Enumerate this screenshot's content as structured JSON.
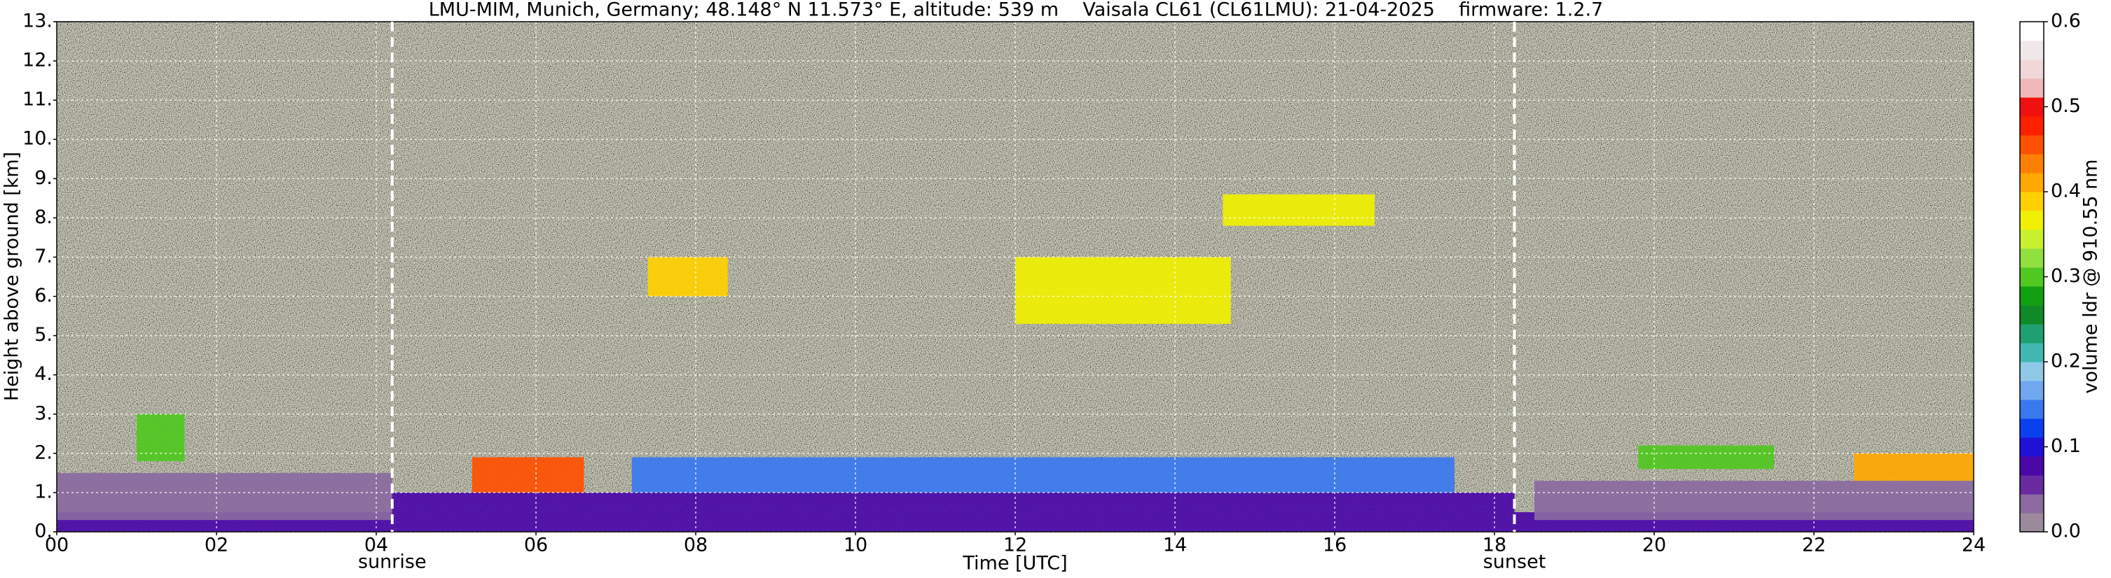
{
  "chart_data": {
    "type": "heatmap",
    "title": "LMU-MIM, Munich, Germany; 48.148° N 11.573° E, altitude: 539 m    Vaisala CL61 (CL61LMU): 21-04-2025    firmware: 1.2.7",
    "x_label": "Time [UTC]",
    "y_label": "Height above ground [km]",
    "xlim": [
      0,
      24
    ],
    "xticks": [
      {
        "value": 0,
        "label": "00"
      },
      {
        "value": 2,
        "label": "02"
      },
      {
        "value": 4,
        "label": "04"
      },
      {
        "value": 6,
        "label": "06"
      },
      {
        "value": 8,
        "label": "08"
      },
      10,
      12,
      14,
      16,
      18,
      20,
      22,
      24
    ],
    "ylim": [
      0,
      13
    ],
    "yticks": [
      {
        "value": 0,
        "label": "0."
      },
      {
        "value": 1,
        "label": "1."
      },
      {
        "value": 2,
        "label": "2."
      },
      {
        "value": 3,
        "label": "3."
      },
      {
        "value": 4,
        "label": "4."
      },
      {
        "value": 5,
        "label": "5."
      },
      {
        "value": 6,
        "label": "6."
      },
      {
        "value": 7,
        "label": "7."
      },
      {
        "value": 8,
        "label": "8."
      },
      {
        "value": 9,
        "label": "9."
      },
      {
        "value": 10,
        "label": "10."
      },
      {
        "value": 11,
        "label": "11."
      },
      {
        "value": 12,
        "label": "12."
      },
      {
        "value": 13,
        "label": "13."
      }
    ],
    "grid": true,
    "annotations": [
      {
        "text": "sunrise",
        "x": 4.2
      },
      {
        "text": "sunset",
        "x": 18.25
      }
    ],
    "colorbar": {
      "label": "volume ldr @ 910.55 nm",
      "clim": [
        0,
        0.6
      ],
      "ticks": [
        {
          "value": 0,
          "label": "0.0"
        },
        0.1,
        0.2,
        0.3,
        0.4,
        0.5,
        0.6
      ],
      "colors": [
        "#9a8a9c",
        "#8a6aa0",
        "#6a2aa0",
        "#4a08a8",
        "#2010d8",
        "#0a40f0",
        "#3a78f0",
        "#70a8f0",
        "#90c8e8",
        "#40b8b0",
        "#20a070",
        "#108a28",
        "#10a010",
        "#50c820",
        "#90e040",
        "#c8f030",
        "#f0f000",
        "#ffd000",
        "#ffa800",
        "#ff8000",
        "#ff5000",
        "#ff2000",
        "#f01010",
        "#f0b8b8",
        "#f0d8d8",
        "#f0e8e8",
        "#ffffff"
      ]
    },
    "layers": [
      {
        "x": [
          0,
          24
        ],
        "y": [
          0,
          0.5
        ],
        "value": 0.08
      },
      {
        "x": [
          0,
          4.2
        ],
        "y": [
          0.3,
          1.5
        ],
        "value": 0.04
      },
      {
        "x": [
          4.2,
          18.25
        ],
        "y": [
          0.5,
          1.0
        ],
        "value": 0.07
      },
      {
        "x": [
          7.2,
          17.5
        ],
        "y": [
          1.0,
          1.9
        ],
        "value": 0.14
      },
      {
        "x": [
          18.5,
          24
        ],
        "y": [
          0.3,
          1.3
        ],
        "value": 0.04
      },
      {
        "x": [
          1.0,
          1.6
        ],
        "y": [
          1.8,
          3.0
        ],
        "value": 0.3
      },
      {
        "x": [
          5.2,
          6.6
        ],
        "y": [
          1.0,
          1.9
        ],
        "value": 0.45
      },
      {
        "x": [
          7.4,
          8.4
        ],
        "y": [
          6.0,
          7.0
        ],
        "value": 0.38
      },
      {
        "x": [
          12.0,
          14.7
        ],
        "y": [
          5.3,
          7.0
        ],
        "value": 0.36
      },
      {
        "x": [
          14.6,
          16.5
        ],
        "y": [
          7.8,
          8.6
        ],
        "value": 0.36
      },
      {
        "x": [
          19.8,
          21.5
        ],
        "y": [
          1.6,
          2.2
        ],
        "value": 0.3
      },
      {
        "x": [
          22.5,
          24
        ],
        "y": [
          1.3,
          2.0
        ],
        "value": 0.42
      }
    ]
  }
}
